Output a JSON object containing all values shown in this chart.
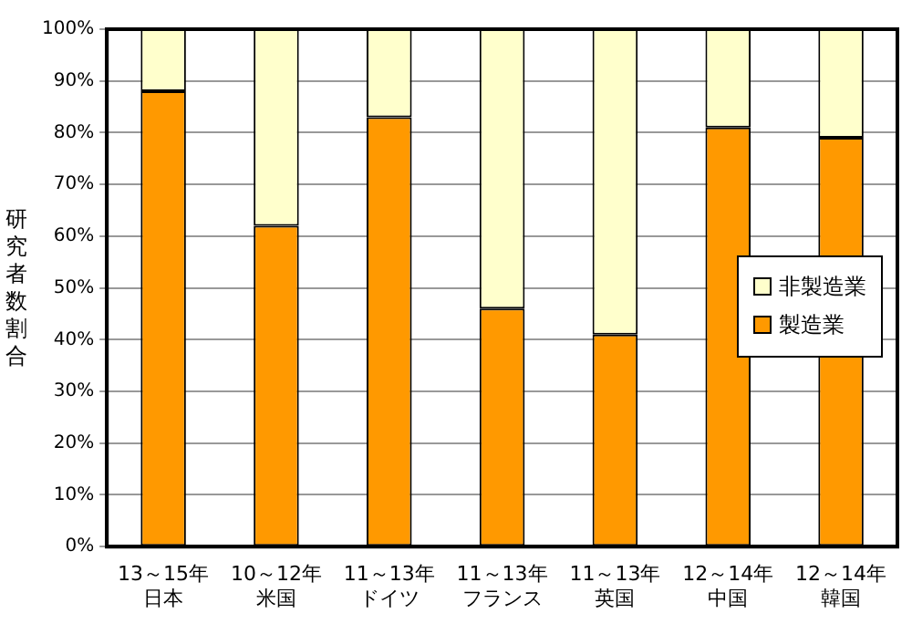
{
  "chart_data": {
    "type": "bar",
    "stacked": true,
    "ylabel": "研究者数割合",
    "categories": [
      "13～15年日本",
      "10～12年米国",
      "11～13年ドイツ",
      "11～13年フランス",
      "11～13年英国",
      "12～14年中国",
      "12～14年韓国"
    ],
    "series": [
      {
        "name": "製造業",
        "color": "#ff9900",
        "values": [
          88,
          62,
          83,
          46,
          41,
          81,
          79
        ]
      },
      {
        "name": "非製造業",
        "color": "#ffffcc",
        "values": [
          12,
          38,
          17,
          54,
          59,
          19,
          21
        ]
      }
    ],
    "ylim": [
      0,
      100
    ],
    "yticks": [
      {
        "value": 0,
        "label": "0%"
      },
      {
        "value": 10,
        "label": "10%"
      },
      {
        "value": 20,
        "label": "20%"
      },
      {
        "value": 30,
        "label": "30%"
      },
      {
        "value": 40,
        "label": "40%"
      },
      {
        "value": 50,
        "label": "50%"
      },
      {
        "value": 60,
        "label": "60%"
      },
      {
        "value": 70,
        "label": "70%"
      },
      {
        "value": 80,
        "label": "80%"
      },
      {
        "value": 90,
        "label": "90%"
      },
      {
        "value": 100,
        "label": "100%"
      }
    ],
    "grid": "y",
    "legend": "right"
  }
}
